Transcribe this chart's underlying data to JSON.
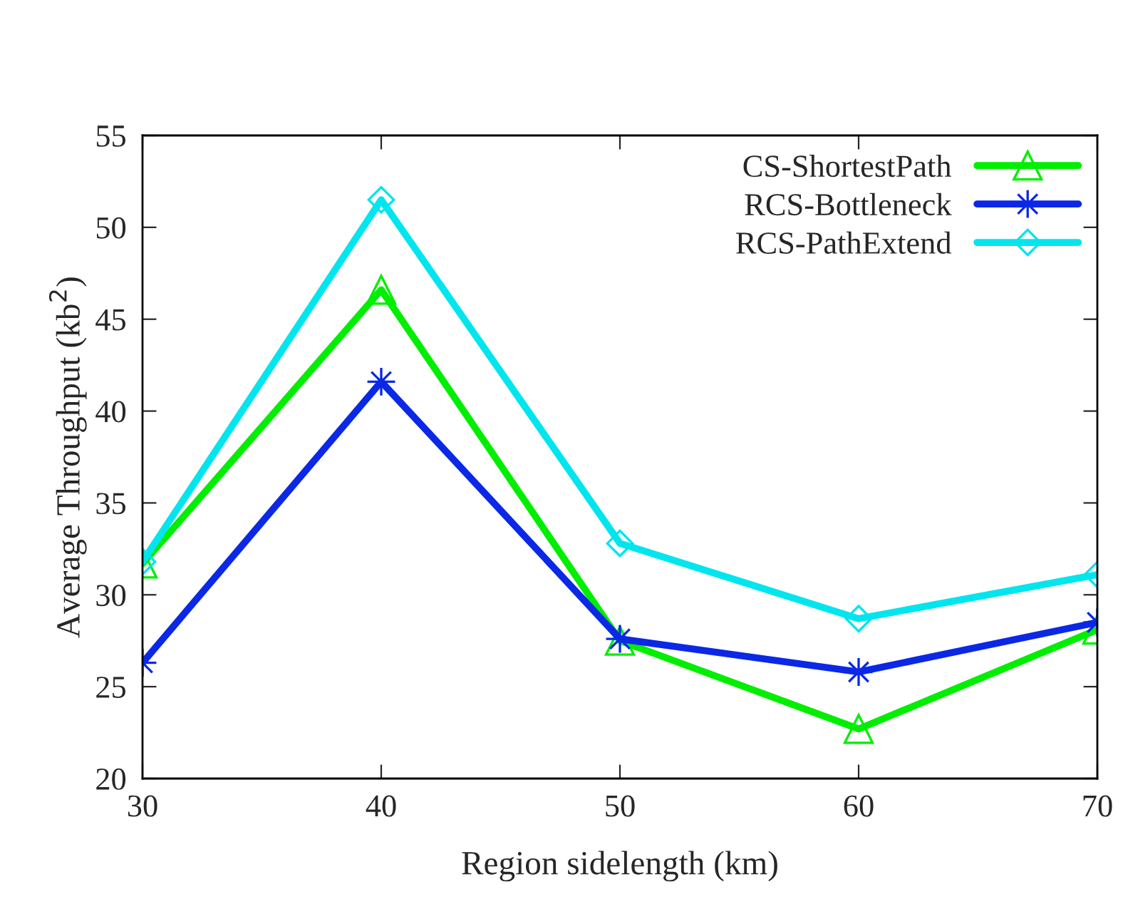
{
  "chart_data": {
    "type": "line",
    "xlabel": "Region sidelength (km)",
    "ylabel": "Average Throughput (kb$^{2}$)",
    "x": [
      30,
      40,
      50,
      60,
      70
    ],
    "series": [
      {
        "name": "CS-ShortestPath",
        "color": "#00ee00",
        "marker": "triangle",
        "values": [
          31.7,
          46.6,
          27.5,
          22.7,
          28.1
        ]
      },
      {
        "name": "RCS-Bottleneck",
        "color": "#0a28e6",
        "marker": "star",
        "values": [
          26.3,
          41.6,
          27.6,
          25.8,
          28.5
        ]
      },
      {
        "name": "RCS-PathExtend",
        "color": "#00e5ee",
        "marker": "diamond",
        "values": [
          31.8,
          51.5,
          32.8,
          28.7,
          31.1
        ]
      }
    ],
    "xlim": [
      30,
      70
    ],
    "xticks": [
      30,
      40,
      50,
      60,
      70
    ],
    "ylim": [
      20,
      55
    ],
    "yticks": [
      20,
      25,
      30,
      35,
      40,
      45,
      50,
      55
    ],
    "legend": "top right",
    "grid": false,
    "line_style": "solid"
  }
}
